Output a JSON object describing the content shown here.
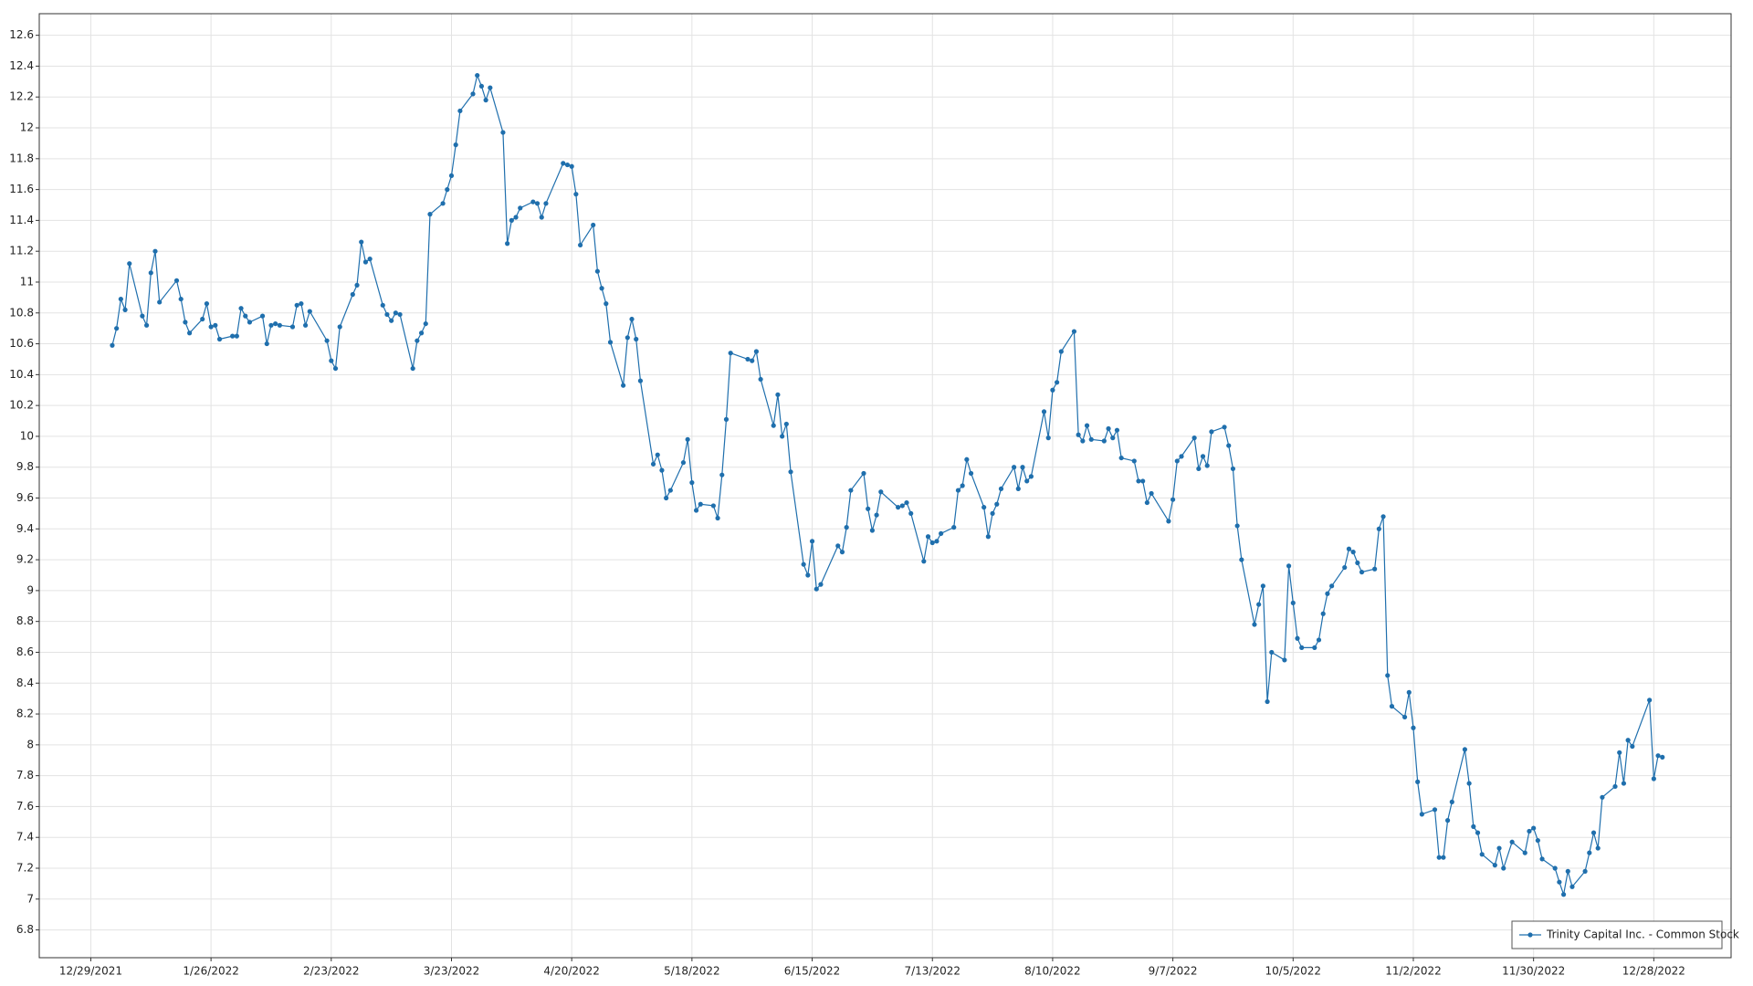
{
  "chart_data": {
    "type": "line",
    "x": [
      "1/3/2022",
      "1/4/2022",
      "1/5/2022",
      "1/6/2022",
      "1/7/2022",
      "1/10/2022",
      "1/11/2022",
      "1/12/2022",
      "1/13/2022",
      "1/14/2022",
      "1/18/2022",
      "1/19/2022",
      "1/20/2022",
      "1/21/2022",
      "1/24/2022",
      "1/25/2022",
      "1/26/2022",
      "1/27/2022",
      "1/28/2022",
      "1/31/2022",
      "2/1/2022",
      "2/2/2022",
      "2/3/2022",
      "2/4/2022",
      "2/7/2022",
      "2/8/2022",
      "2/9/2022",
      "2/10/2022",
      "2/11/2022",
      "2/14/2022",
      "2/15/2022",
      "2/16/2022",
      "2/17/2022",
      "2/18/2022",
      "2/22/2022",
      "2/23/2022",
      "2/24/2022",
      "2/25/2022",
      "2/28/2022",
      "3/1/2022",
      "3/2/2022",
      "3/3/2022",
      "3/4/2022",
      "3/7/2022",
      "3/8/2022",
      "3/9/2022",
      "3/10/2022",
      "3/11/2022",
      "3/14/2022",
      "3/15/2022",
      "3/16/2022",
      "3/17/2022",
      "3/18/2022",
      "3/21/2022",
      "3/22/2022",
      "3/23/2022",
      "3/24/2022",
      "3/25/2022",
      "3/28/2022",
      "3/29/2022",
      "3/30/2022",
      "3/31/2022",
      "4/1/2022",
      "4/4/2022",
      "4/5/2022",
      "4/6/2022",
      "4/7/2022",
      "4/8/2022",
      "4/11/2022",
      "4/12/2022",
      "4/13/2022",
      "4/14/2022",
      "4/18/2022",
      "4/19/2022",
      "4/20/2022",
      "4/21/2022",
      "4/22/2022",
      "4/25/2022",
      "4/26/2022",
      "4/27/2022",
      "4/28/2022",
      "4/29/2022",
      "5/2/2022",
      "5/3/2022",
      "5/4/2022",
      "5/5/2022",
      "5/6/2022",
      "5/9/2022",
      "5/10/2022",
      "5/11/2022",
      "5/12/2022",
      "5/13/2022",
      "5/16/2022",
      "5/17/2022",
      "5/18/2022",
      "5/19/2022",
      "5/20/2022",
      "5/23/2022",
      "5/24/2022",
      "5/25/2022",
      "5/26/2022",
      "5/27/2022",
      "5/31/2022",
      "6/1/2022",
      "6/2/2022",
      "6/3/2022",
      "6/6/2022",
      "6/7/2022",
      "6/8/2022",
      "6/9/2022",
      "6/10/2022",
      "6/13/2022",
      "6/14/2022",
      "6/15/2022",
      "6/16/2022",
      "6/17/2022",
      "6/21/2022",
      "6/22/2022",
      "6/23/2022",
      "6/24/2022",
      "6/27/2022",
      "6/28/2022",
      "6/29/2022",
      "6/30/2022",
      "7/1/2022",
      "7/5/2022",
      "7/6/2022",
      "7/7/2022",
      "7/8/2022",
      "7/11/2022",
      "7/12/2022",
      "7/13/2022",
      "7/14/2022",
      "7/15/2022",
      "7/18/2022",
      "7/19/2022",
      "7/20/2022",
      "7/21/2022",
      "7/22/2022",
      "7/25/2022",
      "7/26/2022",
      "7/27/2022",
      "7/28/2022",
      "7/29/2022",
      "8/1/2022",
      "8/2/2022",
      "8/3/2022",
      "8/4/2022",
      "8/5/2022",
      "8/8/2022",
      "8/9/2022",
      "8/10/2022",
      "8/11/2022",
      "8/12/2022",
      "8/15/2022",
      "8/16/2022",
      "8/17/2022",
      "8/18/2022",
      "8/19/2022",
      "8/22/2022",
      "8/23/2022",
      "8/24/2022",
      "8/25/2022",
      "8/26/2022",
      "8/29/2022",
      "8/30/2022",
      "8/31/2022",
      "9/1/2022",
      "9/2/2022",
      "9/6/2022",
      "9/7/2022",
      "9/8/2022",
      "9/9/2022",
      "9/12/2022",
      "9/13/2022",
      "9/14/2022",
      "9/15/2022",
      "9/16/2022",
      "9/19/2022",
      "9/20/2022",
      "9/21/2022",
      "9/22/2022",
      "9/23/2022",
      "9/26/2022",
      "9/27/2022",
      "9/28/2022",
      "9/29/2022",
      "9/30/2022",
      "10/3/2022",
      "10/4/2022",
      "10/5/2022",
      "10/6/2022",
      "10/7/2022",
      "10/10/2022",
      "10/11/2022",
      "10/12/2022",
      "10/13/2022",
      "10/14/2022",
      "10/17/2022",
      "10/18/2022",
      "10/19/2022",
      "10/20/2022",
      "10/21/2022",
      "10/24/2022",
      "10/25/2022",
      "10/26/2022",
      "10/27/2022",
      "10/28/2022",
      "10/31/2022",
      "11/1/2022",
      "11/2/2022",
      "11/3/2022",
      "11/4/2022",
      "11/7/2022",
      "11/8/2022",
      "11/9/2022",
      "11/10/2022",
      "11/11/2022",
      "11/14/2022",
      "11/15/2022",
      "11/16/2022",
      "11/17/2022",
      "11/18/2022",
      "11/21/2022",
      "11/22/2022",
      "11/23/2022",
      "11/25/2022",
      "11/28/2022",
      "11/29/2022",
      "11/30/2022",
      "12/1/2022",
      "12/2/2022",
      "12/5/2022",
      "12/6/2022",
      "12/7/2022",
      "12/8/2022",
      "12/9/2022",
      "12/12/2022",
      "12/13/2022",
      "12/14/2022",
      "12/15/2022",
      "12/16/2022",
      "12/19/2022",
      "12/20/2022",
      "12/21/2022",
      "12/22/2022",
      "12/23/2022",
      "12/27/2022",
      "12/28/2022",
      "12/29/2022",
      "12/30/2022"
    ],
    "series": [
      {
        "name": "Trinity Capital Inc. - Common Stock",
        "color": "#1f6fad",
        "values": [
          10.59,
          10.7,
          10.89,
          10.82,
          11.12,
          10.78,
          10.72,
          11.06,
          11.2,
          10.87,
          11.01,
          10.89,
          10.74,
          10.67,
          10.76,
          10.86,
          10.71,
          10.72,
          10.63,
          10.65,
          10.65,
          10.83,
          10.78,
          10.74,
          10.78,
          10.6,
          10.72,
          10.73,
          10.72,
          10.71,
          10.85,
          10.86,
          10.72,
          10.81,
          10.62,
          10.49,
          10.44,
          10.71,
          10.92,
          10.98,
          11.26,
          11.13,
          11.15,
          10.85,
          10.79,
          10.75,
          10.8,
          10.79,
          10.44,
          10.62,
          10.67,
          10.73,
          11.44,
          11.51,
          11.6,
          11.69,
          11.89,
          12.11,
          12.22,
          12.34,
          12.27,
          12.18,
          12.26,
          11.97,
          11.25,
          11.4,
          11.42,
          11.48,
          11.52,
          11.51,
          11.42,
          11.51,
          11.77,
          11.76,
          11.75,
          11.57,
          11.24,
          11.37,
          11.07,
          10.96,
          10.86,
          10.61,
          10.33,
          10.64,
          10.76,
          10.63,
          10.36,
          9.82,
          9.88,
          9.78,
          9.6,
          9.65,
          9.83,
          9.98,
          9.7,
          9.52,
          9.56,
          9.55,
          9.47,
          9.75,
          10.11,
          10.54,
          10.5,
          10.49,
          10.55,
          10.37,
          10.07,
          10.27,
          10.0,
          10.08,
          9.77,
          9.17,
          9.1,
          9.32,
          9.01,
          9.04,
          9.29,
          9.25,
          9.41,
          9.65,
          9.76,
          9.53,
          9.39,
          9.49,
          9.64,
          9.54,
          9.55,
          9.57,
          9.5,
          9.19,
          9.35,
          9.31,
          9.32,
          9.37,
          9.41,
          9.65,
          9.68,
          9.85,
          9.76,
          9.54,
          9.35,
          9.5,
          9.56,
          9.66,
          9.8,
          9.66,
          9.8,
          9.71,
          9.74,
          10.16,
          9.99,
          10.3,
          10.35,
          10.55,
          10.68,
          10.01,
          9.97,
          10.07,
          9.98,
          9.97,
          10.05,
          9.99,
          10.04,
          9.86,
          9.84,
          9.71,
          9.71,
          9.57,
          9.63,
          9.45,
          9.59,
          9.84,
          9.87,
          9.99,
          9.79,
          9.87,
          9.81,
          10.03,
          10.06,
          9.94,
          9.79,
          9.42,
          9.2,
          8.78,
          8.91,
          9.03,
          8.28,
          8.6,
          8.55,
          9.16,
          8.92,
          8.69,
          8.63,
          8.63,
          8.68,
          8.85,
          8.98,
          9.03,
          9.15,
          9.27,
          9.25,
          9.18,
          9.12,
          9.14,
          9.4,
          9.48,
          8.45,
          8.25,
          8.18,
          8.34,
          8.11,
          7.76,
          7.55,
          7.58,
          7.27,
          7.27,
          7.51,
          7.63,
          7.97,
          7.75,
          7.47,
          7.43,
          7.29,
          7.22,
          7.33,
          7.2,
          7.37,
          7.3,
          7.44,
          7.46,
          7.38,
          7.26,
          7.2,
          7.11,
          7.03,
          7.18,
          7.08,
          7.18,
          7.3,
          7.43,
          7.33,
          7.66,
          7.73,
          7.95,
          7.75,
          8.03,
          7.99,
          8.29,
          7.78,
          7.93,
          7.92
        ]
      }
    ],
    "xlim": [
      "12/17/2021",
      "1/15/2023"
    ],
    "xticks": [
      "12/29/2021",
      "1/26/2022",
      "2/23/2022",
      "3/23/2022",
      "4/20/2022",
      "5/18/2022",
      "6/15/2022",
      "7/13/2022",
      "8/10/2022",
      "9/7/2022",
      "10/5/2022",
      "11/2/2022",
      "11/30/2022",
      "12/28/2022"
    ],
    "ylim": [
      6.62,
      12.74
    ],
    "yticks": [
      6.8,
      7,
      7.2,
      7.4,
      7.6,
      7.8,
      8,
      8.2,
      8.4,
      8.6,
      8.8,
      9,
      9.2,
      9.4,
      9.6,
      9.8,
      10,
      10.2,
      10.4,
      10.6,
      10.8,
      11,
      11.2,
      11.4,
      11.6,
      11.8,
      12,
      12.2,
      12.4,
      12.6
    ],
    "grid": true,
    "legend": "lower-right"
  }
}
